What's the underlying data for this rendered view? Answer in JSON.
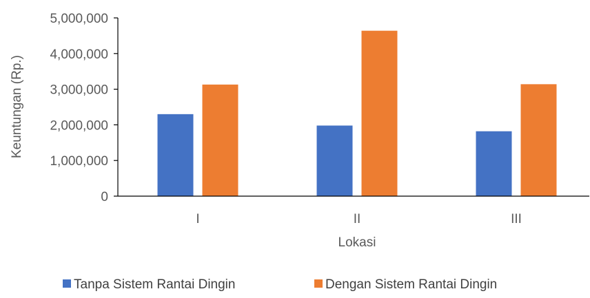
{
  "chart_data": {
    "type": "bar",
    "title": "",
    "xlabel": "Lokasi",
    "ylabel": "Keuntungan (Rp.)",
    "categories": [
      "I",
      "II",
      "III"
    ],
    "series": [
      {
        "name": "Tanpa Sistem Rantai Dingin",
        "color": "#4472C4",
        "values": [
          2300000,
          1980000,
          1820000
        ]
      },
      {
        "name": "Dengan Sistem Rantai Dingin",
        "color": "#ED7D31",
        "values": [
          3130000,
          4640000,
          3140000
        ]
      }
    ],
    "ylim": [
      0,
      5000000
    ],
    "yticks": [
      0,
      1000000,
      2000000,
      3000000,
      4000000,
      5000000
    ],
    "ytick_labels": [
      "0",
      "1,000,000",
      "2,000,000",
      "3,000,000",
      "4,000,000",
      "5,000,000"
    ],
    "grid": false,
    "legend_position": "bottom"
  }
}
